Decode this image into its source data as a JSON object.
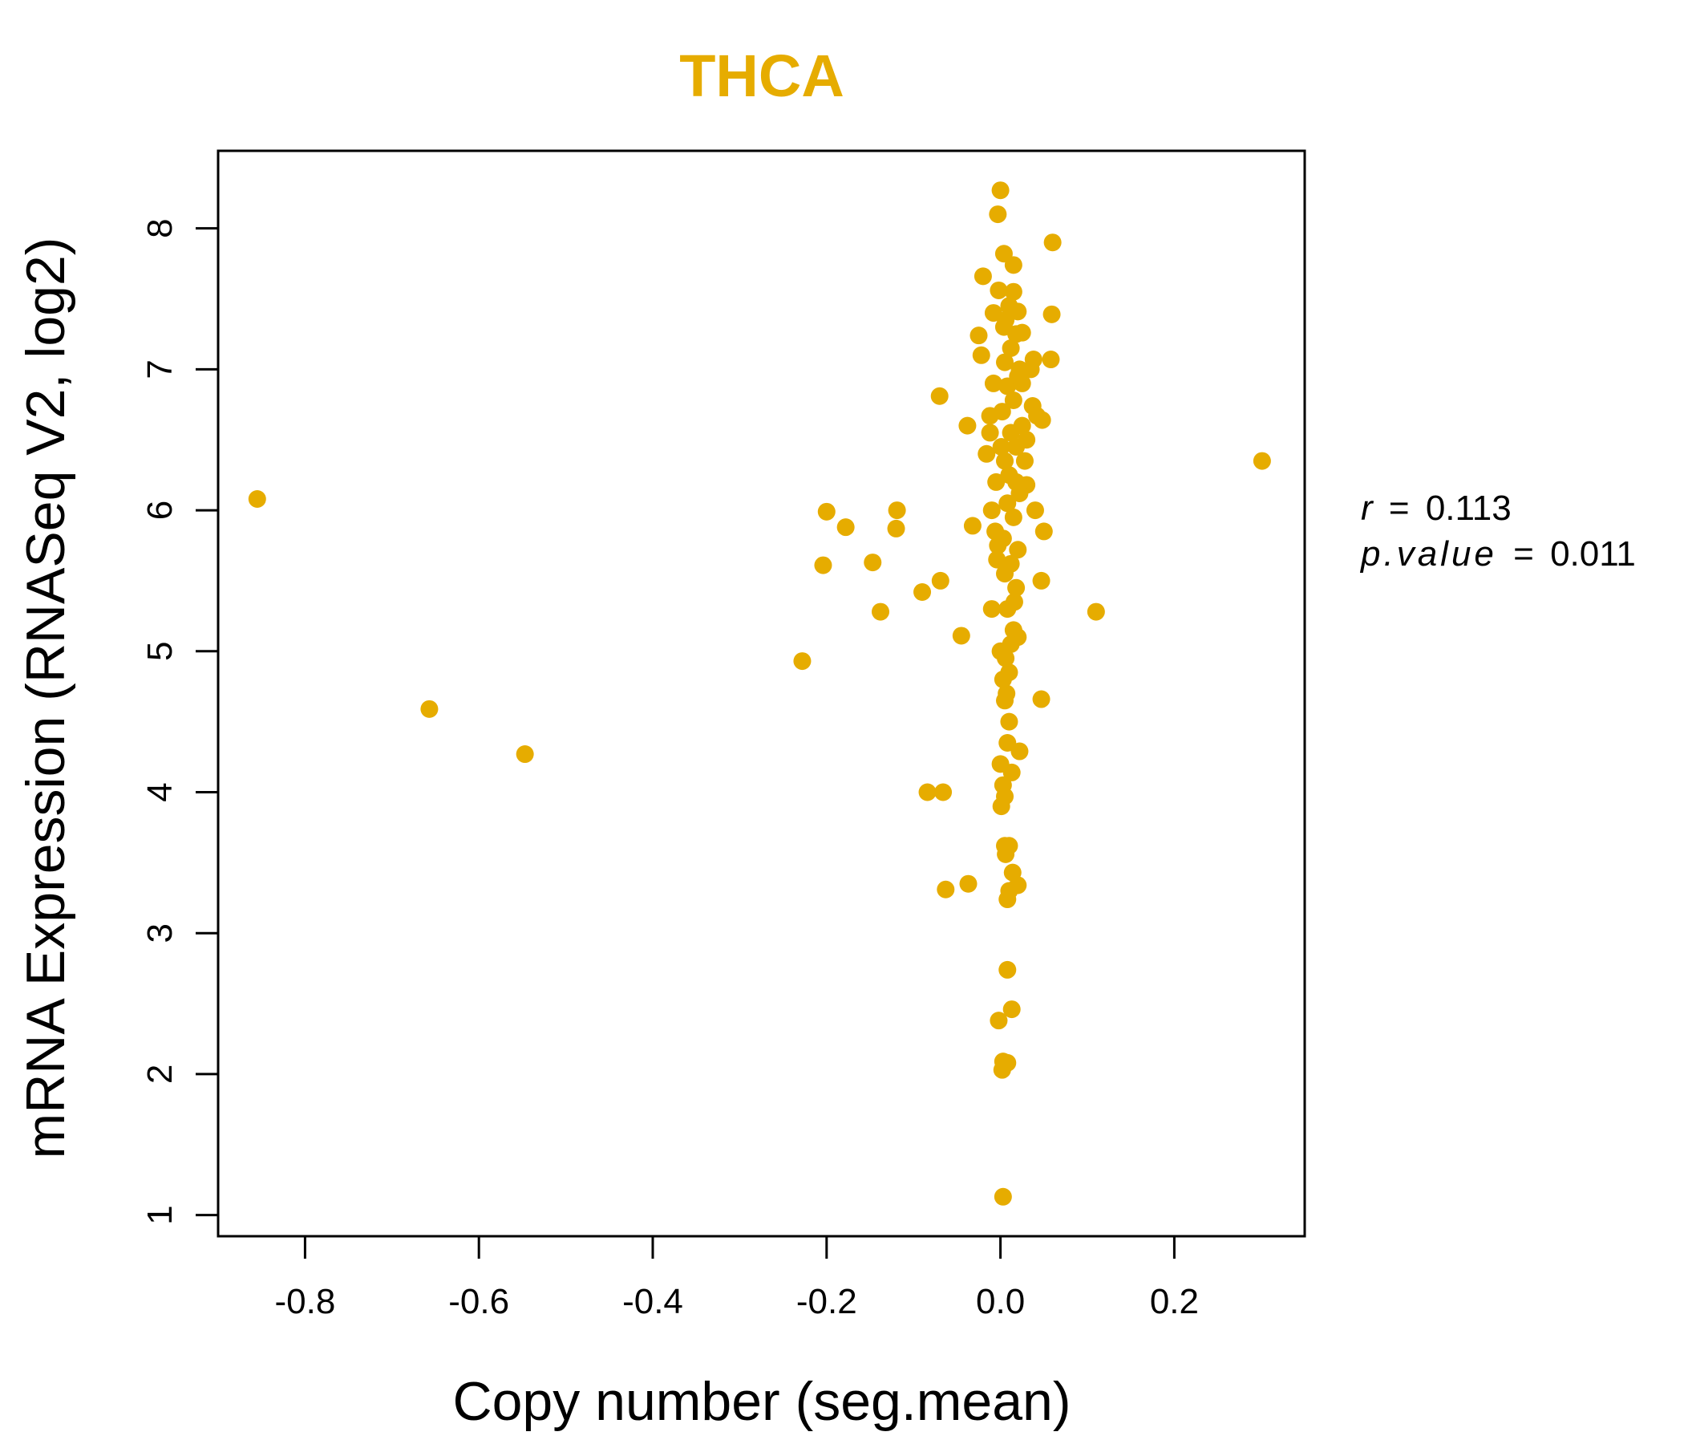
{
  "chart_data": {
    "type": "scatter",
    "title": "THCA",
    "xlabel": "Copy number (seg.mean)",
    "ylabel": "mRNA Expression (RNASeq V2, log2)",
    "xlim": [
      -0.9,
      0.35
    ],
    "ylim": [
      0.85,
      8.55
    ],
    "x_ticks": [
      -0.8,
      -0.6,
      -0.4,
      -0.2,
      0.0,
      0.2
    ],
    "x_tick_labels": [
      "-0.8",
      "-0.6",
      "-0.4",
      "-0.2",
      "0.0",
      "0.2"
    ],
    "y_ticks": [
      1,
      2,
      3,
      4,
      5,
      6,
      7,
      8
    ],
    "y_tick_labels": [
      "1",
      "2",
      "3",
      "4",
      "5",
      "6",
      "7",
      "8"
    ],
    "point_color": "#E6AC00",
    "stats": {
      "r_symbol": "r",
      "r_value": "0.113",
      "p_symbol": "p.value",
      "p_value": "0.011",
      "equals": "="
    },
    "points": [
      [
        -0.855,
        6.08
      ],
      [
        -0.657,
        4.59
      ],
      [
        -0.547,
        4.27
      ],
      [
        -0.228,
        4.93
      ],
      [
        -0.2,
        5.99
      ],
      [
        -0.204,
        5.61
      ],
      [
        -0.178,
        5.88
      ],
      [
        -0.147,
        5.63
      ],
      [
        -0.138,
        5.28
      ],
      [
        -0.119,
        6.0
      ],
      [
        -0.12,
        5.87
      ],
      [
        -0.09,
        5.42
      ],
      [
        -0.069,
        5.5
      ],
      [
        -0.07,
        6.81
      ],
      [
        -0.084,
        4.0
      ],
      [
        -0.066,
        4.0
      ],
      [
        -0.063,
        3.31
      ],
      [
        -0.037,
        3.35
      ],
      [
        -0.045,
        5.11
      ],
      [
        -0.038,
        6.6
      ],
      [
        -0.032,
        5.89
      ],
      [
        -0.025,
        7.24
      ],
      [
        -0.022,
        7.1
      ],
      [
        -0.02,
        7.66
      ],
      [
        -0.016,
        6.4
      ],
      [
        -0.012,
        6.67
      ],
      [
        -0.01,
        5.3
      ],
      [
        -0.008,
        7.4
      ],
      [
        -0.006,
        5.85
      ],
      [
        -0.003,
        5.75
      ],
      [
        -0.002,
        7.56
      ],
      [
        0.0,
        8.27
      ],
      [
        -0.003,
        8.1
      ],
      [
        0.004,
        7.82
      ],
      [
        0.015,
        7.74
      ],
      [
        0.06,
        7.9
      ],
      [
        0.059,
        7.39
      ],
      [
        0.058,
        7.07
      ],
      [
        0.038,
        7.07
      ],
      [
        0.035,
        7.0
      ],
      [
        0.037,
        6.74
      ],
      [
        0.042,
        6.67
      ],
      [
        0.048,
        6.64
      ],
      [
        0.025,
        6.9
      ],
      [
        0.025,
        7.26
      ],
      [
        0.02,
        7.41
      ],
      [
        0.018,
        6.2
      ],
      [
        0.03,
        6.18
      ],
      [
        0.04,
        6.0
      ],
      [
        0.05,
        5.85
      ],
      [
        0.047,
        5.5
      ],
      [
        0.11,
        5.28
      ],
      [
        0.301,
        6.35
      ],
      [
        0.047,
        4.66
      ],
      [
        0.022,
        4.29
      ],
      [
        0.013,
        4.14
      ],
      [
        0.003,
        4.05
      ],
      [
        0.0,
        4.2
      ],
      [
        0.001,
        3.9
      ],
      [
        0.005,
        3.97
      ],
      [
        0.005,
        3.62
      ],
      [
        0.01,
        3.62
      ],
      [
        0.006,
        3.56
      ],
      [
        0.014,
        3.43
      ],
      [
        0.02,
        3.34
      ],
      [
        0.01,
        3.3
      ],
      [
        0.008,
        3.24
      ],
      [
        0.008,
        2.74
      ],
      [
        0.013,
        2.46
      ],
      [
        -0.002,
        2.38
      ],
      [
        0.003,
        2.09
      ],
      [
        0.008,
        2.08
      ],
      [
        0.002,
        2.03
      ],
      [
        0.003,
        1.13
      ],
      [
        0.008,
        4.35
      ],
      [
        0.01,
        4.5
      ],
      [
        0.005,
        4.65
      ],
      [
        0.003,
        4.8
      ],
      [
        0.006,
        4.95
      ],
      [
        0.012,
        5.05
      ],
      [
        0.015,
        5.15
      ],
      [
        0.008,
        5.3
      ],
      [
        0.018,
        5.45
      ],
      [
        0.005,
        5.55
      ],
      [
        0.012,
        5.62
      ],
      [
        0.02,
        5.72
      ],
      [
        0.003,
        5.8
      ],
      [
        0.015,
        5.95
      ],
      [
        0.008,
        6.05
      ],
      [
        0.022,
        6.12
      ],
      [
        0.01,
        6.25
      ],
      [
        0.005,
        6.35
      ],
      [
        0.018,
        6.45
      ],
      [
        0.012,
        6.55
      ],
      [
        0.025,
        6.6
      ],
      [
        0.002,
        6.7
      ],
      [
        0.015,
        6.78
      ],
      [
        0.008,
        6.88
      ],
      [
        0.02,
        6.95
      ],
      [
        0.005,
        7.05
      ],
      [
        0.012,
        7.15
      ],
      [
        0.018,
        7.25
      ],
      [
        0.006,
        7.35
      ],
      [
        0.01,
        7.45
      ],
      [
        0.015,
        7.55
      ],
      [
        0.004,
        7.3
      ],
      [
        0.022,
        7.0
      ],
      [
        -0.008,
        6.9
      ],
      [
        -0.012,
        6.55
      ],
      [
        -0.005,
        6.2
      ],
      [
        -0.01,
        6.0
      ],
      [
        -0.004,
        5.65
      ],
      [
        0.028,
        6.35
      ],
      [
        0.03,
        6.5
      ],
      [
        0.001,
        6.45
      ],
      [
        0.016,
        5.35
      ],
      [
        0.02,
        5.1
      ],
      [
        0.0,
        5.0
      ],
      [
        0.01,
        4.85
      ],
      [
        0.007,
        4.7
      ]
    ]
  }
}
